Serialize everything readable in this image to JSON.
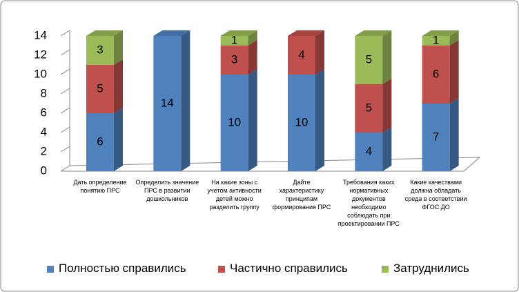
{
  "chart_data": {
    "type": "bar3d_stacked",
    "categories": [
      "Дать определение понятию  ПРС",
      "Определить значение ПРС в развитии дошкольников",
      "На какие зоны с учетом активности детей можно разделить группу",
      "Дайте характеристику принципам формирования ПРС",
      "Требования каких нормативных документов необходимо соблюдать при проектировании ПРС",
      "Какие качествами должна обладать среда в соответствии ФГОС ДО"
    ],
    "series": [
      {
        "name": "Полностью справились",
        "color": "#4f81bd",
        "values": [
          6,
          14,
          10,
          10,
          4,
          7
        ]
      },
      {
        "name": "Частично справились",
        "color": "#c0504d",
        "values": [
          5,
          null,
          3,
          4,
          5,
          6
        ]
      },
      {
        "name": "Затруднились",
        "color": "#9bbb59",
        "values": [
          3,
          null,
          1,
          null,
          5,
          1
        ]
      }
    ],
    "ylim": [
      0,
      14
    ],
    "yticks": [
      0,
      2,
      4,
      6,
      8,
      10,
      12,
      14
    ],
    "legend": "bottom"
  }
}
